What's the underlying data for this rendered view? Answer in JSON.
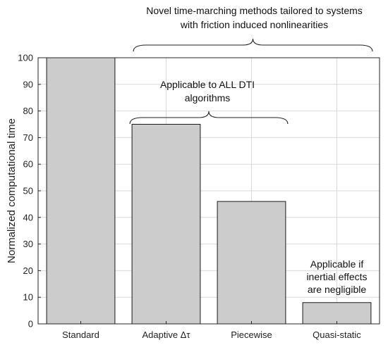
{
  "chart_data": {
    "type": "bar",
    "categories": [
      "Standard",
      "Adaptive Δτ",
      "Piecewise",
      "Quasi-static"
    ],
    "values": [
      100,
      75,
      46,
      8
    ],
    "ylabel": "Normalized computational time",
    "ylim": [
      0,
      100
    ],
    "yticks": [
      0,
      10,
      20,
      30,
      40,
      50,
      60,
      70,
      80,
      90,
      100
    ],
    "grid": true,
    "colors": {
      "bar_fill": "#cccccc",
      "bar_edge": "#1a1a1a",
      "grid": "#d9d9d9"
    },
    "annotations": [
      {
        "lines": [
          "Novel time-marching methods tailored to systems",
          "with friction induced nonlinearities"
        ],
        "brace_from": 1,
        "brace_to": 3
      },
      {
        "lines": [
          "Applicable to ALL DTI",
          "algorithms"
        ],
        "brace_from": 1,
        "brace_to": 2
      },
      {
        "lines": [
          "Applicable if",
          "inertial effects",
          "are negligible"
        ],
        "brace_from": 3,
        "brace_to": 3
      }
    ]
  }
}
